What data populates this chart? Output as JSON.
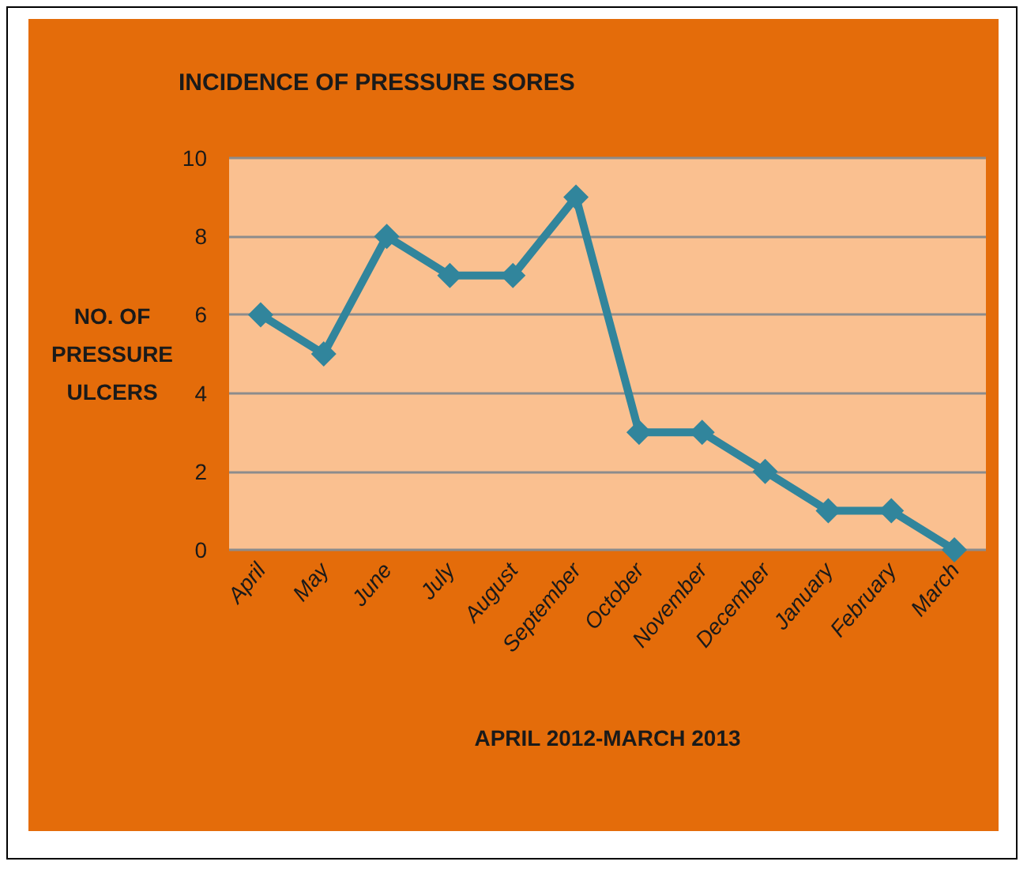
{
  "chart_data": {
    "type": "line",
    "title": "INCIDENCE OF PRESSURE SORES",
    "xlabel": "APRIL 2012-MARCH 2013",
    "ylabel": "NO. OF PRESSURE ULCERS",
    "categories": [
      "April",
      "May",
      "June",
      "July",
      "August",
      "September",
      "October",
      "November",
      "December",
      "January",
      "February",
      "March"
    ],
    "series": [
      {
        "color": "#31859c",
        "values": [
          6,
          5,
          8,
          7,
          7,
          9,
          3,
          3,
          2,
          1,
          1,
          0
        ]
      }
    ],
    "ylim": [
      0,
      10
    ],
    "yticks": [
      0,
      2,
      4,
      6,
      8,
      10
    ],
    "grid": "y",
    "marker": "diamond",
    "line_style": "solid"
  }
}
